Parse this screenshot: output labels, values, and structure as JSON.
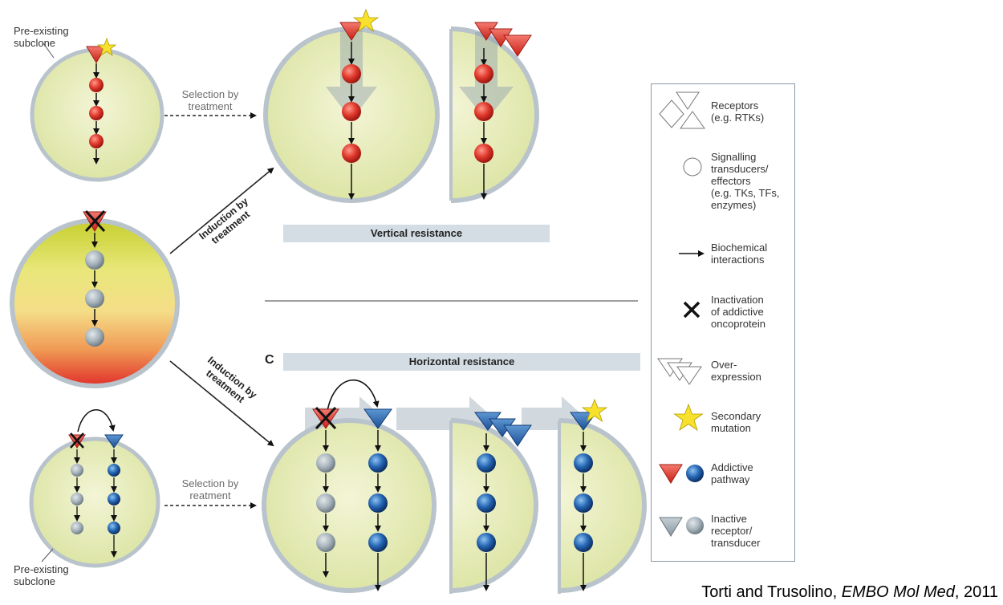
{
  "labels": {
    "pre_existing_top_line1": "Pre-existing",
    "pre_existing_top_line2": "subclone",
    "selection_top_line1": "Selection by",
    "selection_top_line2": "treatment",
    "induction_top_line1": "Induction by",
    "induction_top_line2": "treatment",
    "induction_bottom_line1": "Induction by",
    "induction_bottom_line2": "treatment",
    "selection_bottom_line1": "Selection by",
    "selection_bottom_line2": "reatment",
    "pre_existing_bottom_line1": "Pre-existing",
    "pre_existing_bottom_line2": "subclone",
    "panel_letter": "C"
  },
  "bars": {
    "vertical": "Vertical resistance",
    "horizontal": "Horizontal resistance"
  },
  "legend": {
    "receptors": [
      "Receptors",
      "(e.g. RTKs)"
    ],
    "signalling": [
      "Signalling",
      "transducers/",
      "effectors",
      "(e.g. TKs, TFs,",
      "enzymes)"
    ],
    "biochemical": [
      "Biochemical",
      "interactions"
    ],
    "inactivation": [
      "Inactivation",
      "of addictive",
      "oncoprotein"
    ],
    "overexpression": [
      "Over-",
      "expression"
    ],
    "secondary": [
      "Secondary",
      "mutation"
    ],
    "addictive": [
      "Addictive",
      "pathway"
    ],
    "inactive": [
      "Inactive",
      "receptor/",
      "transducer"
    ]
  },
  "citation": {
    "authors": "Torti and Trusolino, ",
    "journal": "EMBO Mol Med",
    "year": ", 2011"
  },
  "colors": {
    "cell_fill": "#e4ebb4",
    "cell_border": "#b9c3cb",
    "red_node": "#d92a1f",
    "blue_node": "#1f5fae",
    "grey_node": "#a7b3bb",
    "bar": "#d3dde3",
    "star": "#f7e12c"
  }
}
